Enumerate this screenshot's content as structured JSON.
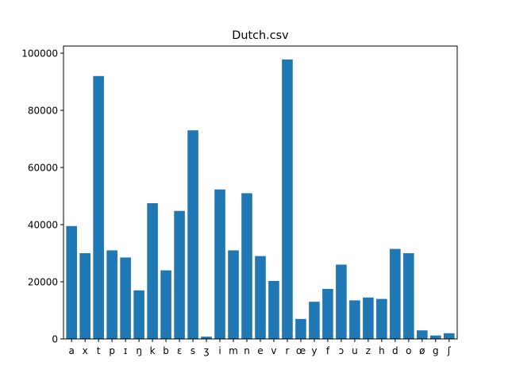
{
  "chart_data": {
    "type": "bar",
    "title": "Dutch.csv",
    "xlabel": "",
    "ylabel": "",
    "ylim": [
      0,
      102500
    ],
    "yticks": [
      0,
      20000,
      40000,
      60000,
      80000,
      100000
    ],
    "ytick_labels": [
      "0",
      "20000",
      "40000",
      "60000",
      "80000",
      "100000"
    ],
    "categories": [
      "a",
      "x",
      "t",
      "p",
      "ɪ",
      "ŋ",
      "k",
      "b",
      "ɛ",
      "s",
      "ʒ",
      "i",
      "m",
      "n",
      "e",
      "v",
      "r",
      "œ",
      "y",
      "f",
      "ɔ",
      "u",
      "z",
      "h",
      "d",
      "o",
      "ø",
      "g",
      "ʃ"
    ],
    "values": [
      39500,
      30000,
      92000,
      31000,
      28500,
      17000,
      47500,
      24000,
      44800,
      73000,
      800,
      52300,
      31000,
      51000,
      29000,
      20300,
      97800,
      7000,
      13000,
      17500,
      26000,
      13500,
      14500,
      14000,
      31500,
      30000,
      3000,
      1200,
      2000
    ],
    "bar_color": "#1f77b4",
    "grid": false,
    "legend": "none"
  }
}
